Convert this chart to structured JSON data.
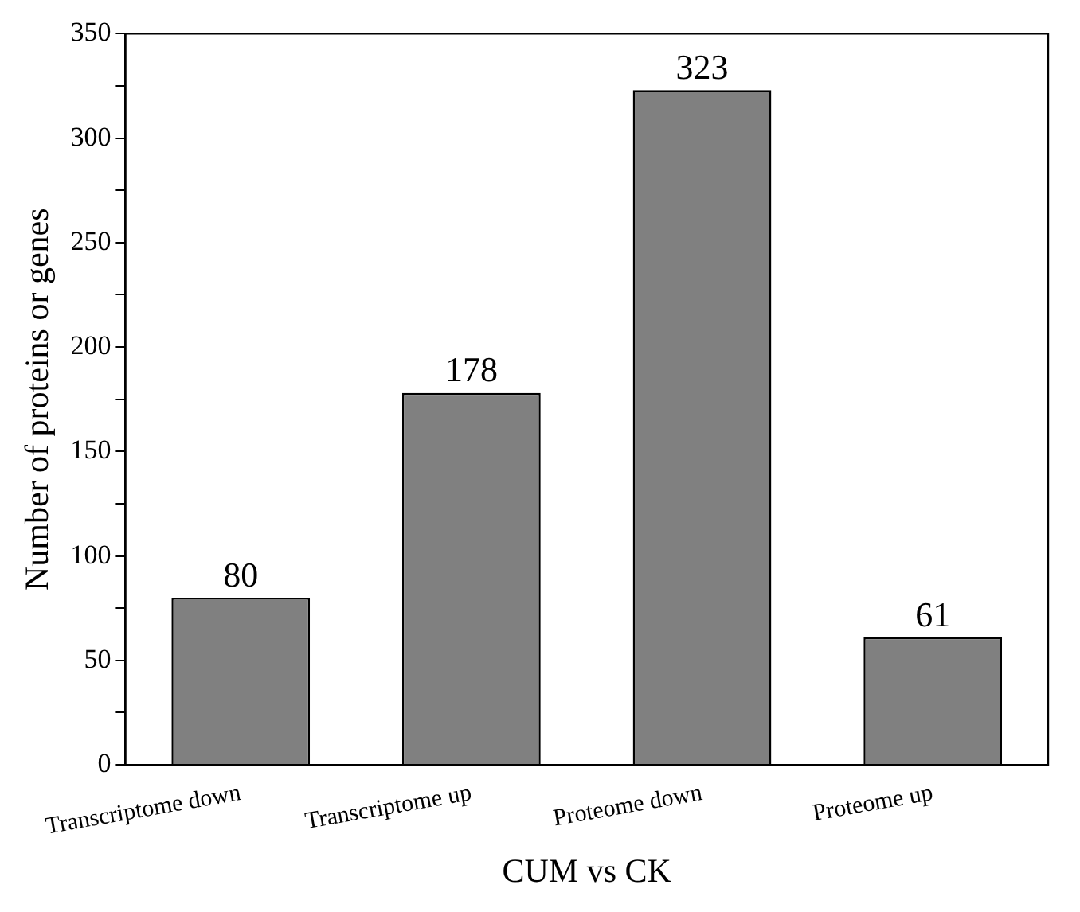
{
  "chart_data": {
    "type": "bar",
    "xlabel": "CUM vs CK",
    "ylabel": "Number of proteins or genes",
    "categories": [
      "Transcriptome down",
      "Transcriptome up",
      "Proteome down",
      "Proteome up"
    ],
    "values": [
      80,
      178,
      323,
      61
    ],
    "color": "#808080",
    "data_labels": true,
    "grid": false,
    "legend": false,
    "ylim": [
      0,
      350
    ],
    "yticks": [
      0,
      {
        "value": 25,
        "label": null
      },
      50,
      {
        "value": 75,
        "label": null
      },
      100,
      {
        "value": 125,
        "label": null
      },
      150,
      {
        "value": 175,
        "label": null
      },
      200,
      {
        "value": 225,
        "label": null
      },
      250,
      {
        "value": 275,
        "label": null
      },
      300,
      {
        "value": 325,
        "label": null
      },
      350
    ]
  }
}
